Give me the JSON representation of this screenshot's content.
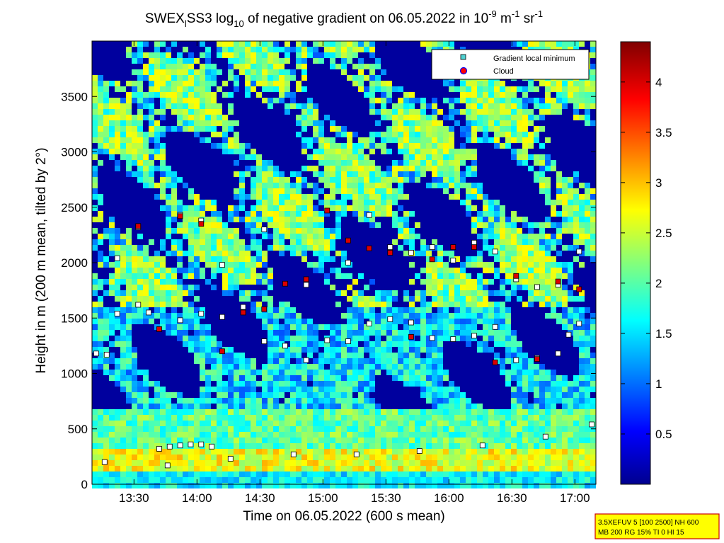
{
  "chart_data": {
    "type": "heatmap",
    "title": {
      "p1": "SWEX",
      "p1_sub": "l",
      "p2": "SS3 log",
      "p2_sub": "10",
      "p3": " of negative gradient on 06.05.2022 in 10",
      "sup1": "-9",
      "p4": " m",
      "sup2": "-1",
      "p5": " sr",
      "sup3": "-1"
    },
    "xlabel": "Time on 06.05.2022 (600 s mean)",
    "ylabel": "Height in m (200 m mean, tilted by 2°)",
    "x_ticks": [
      "13:30",
      "14:00",
      "14:30",
      "15:00",
      "15:30",
      "16:00",
      "16:30",
      "17:00"
    ],
    "y_ticks": [
      "0",
      "500",
      "1000",
      "1500",
      "2000",
      "2500",
      "3000",
      "3500"
    ],
    "xlim_minutes": [
      790,
      1030
    ],
    "ylim": [
      0,
      4000
    ],
    "colorbar": {
      "ticks": [
        "0.5",
        "1",
        "1.5",
        "2",
        "2.5",
        "3",
        "3.5",
        "4"
      ],
      "range": [
        0,
        4.4
      ],
      "colormap": "jet"
    },
    "legend": {
      "position": "top-right",
      "items": [
        {
          "label": "Gradient local minimum",
          "marker": "square",
          "color": "#4fd2d2"
        },
        {
          "label": "Cloud",
          "marker": "circle",
          "color": "#ff0000",
          "edge": "#0000ff"
        }
      ]
    },
    "info_box": {
      "line1": "3.5XEFUV 5 [100 2500] NH 600",
      "line2": "MB 200 RG 15% TI 0 HI 15"
    },
    "series": [
      {
        "kind": "gradient-min",
        "x": [
          796,
          826,
          856,
          886,
          916,
          946,
          976,
          1006,
          1028
        ],
        "y": [
          200,
          170,
          230,
          270,
          270,
          300,
          350,
          430,
          540
        ]
      },
      {
        "kind": "gradient-min",
        "x": [
          822,
          827,
          832,
          837,
          842,
          847
        ],
        "y": [
          320,
          340,
          350,
          360,
          360,
          340
        ]
      },
      {
        "kind": "gradient-min",
        "x": [
          792,
          797,
          802,
          812,
          817,
          832,
          842,
          852,
          862,
          872,
          882,
          892,
          902,
          912,
          922,
          932,
          942,
          952,
          962,
          972,
          982,
          992,
          1002,
          1012,
          1017,
          1022
        ],
        "y": [
          1180,
          1170,
          1540,
          1620,
          1550,
          1480,
          1540,
          1510,
          1600,
          1290,
          1250,
          1120,
          1300,
          1290,
          1450,
          1490,
          1460,
          1320,
          1310,
          1340,
          1420,
          1120,
          1140,
          1180,
          1350,
          1450
        ]
      },
      {
        "kind": "gradient-min",
        "x": [
          802,
          812,
          832,
          842,
          852,
          872,
          892,
          912,
          922,
          932,
          942,
          952,
          962,
          972,
          982,
          992,
          1002,
          1012,
          1022
        ],
        "y": [
          2040,
          2320,
          2430,
          2380,
          1980,
          2300,
          1800,
          2000,
          2430,
          2140,
          2090,
          2140,
          2020,
          2180,
          2100,
          1850,
          1780,
          1800,
          2100
        ]
      },
      {
        "kind": "cloud",
        "x": [
          812,
          822,
          832,
          842,
          852,
          862,
          872,
          882,
          892,
          902,
          912,
          922,
          932,
          942,
          952,
          962,
          972,
          982,
          992,
          1002,
          1012,
          1022
        ],
        "y": [
          2330,
          1400,
          2420,
          2350,
          1200,
          1550,
          1580,
          1810,
          1850,
          2470,
          2200,
          2130,
          2090,
          1330,
          2030,
          2140,
          2140,
          1100,
          1880,
          1130,
          1830,
          1760
        ]
      }
    ]
  }
}
